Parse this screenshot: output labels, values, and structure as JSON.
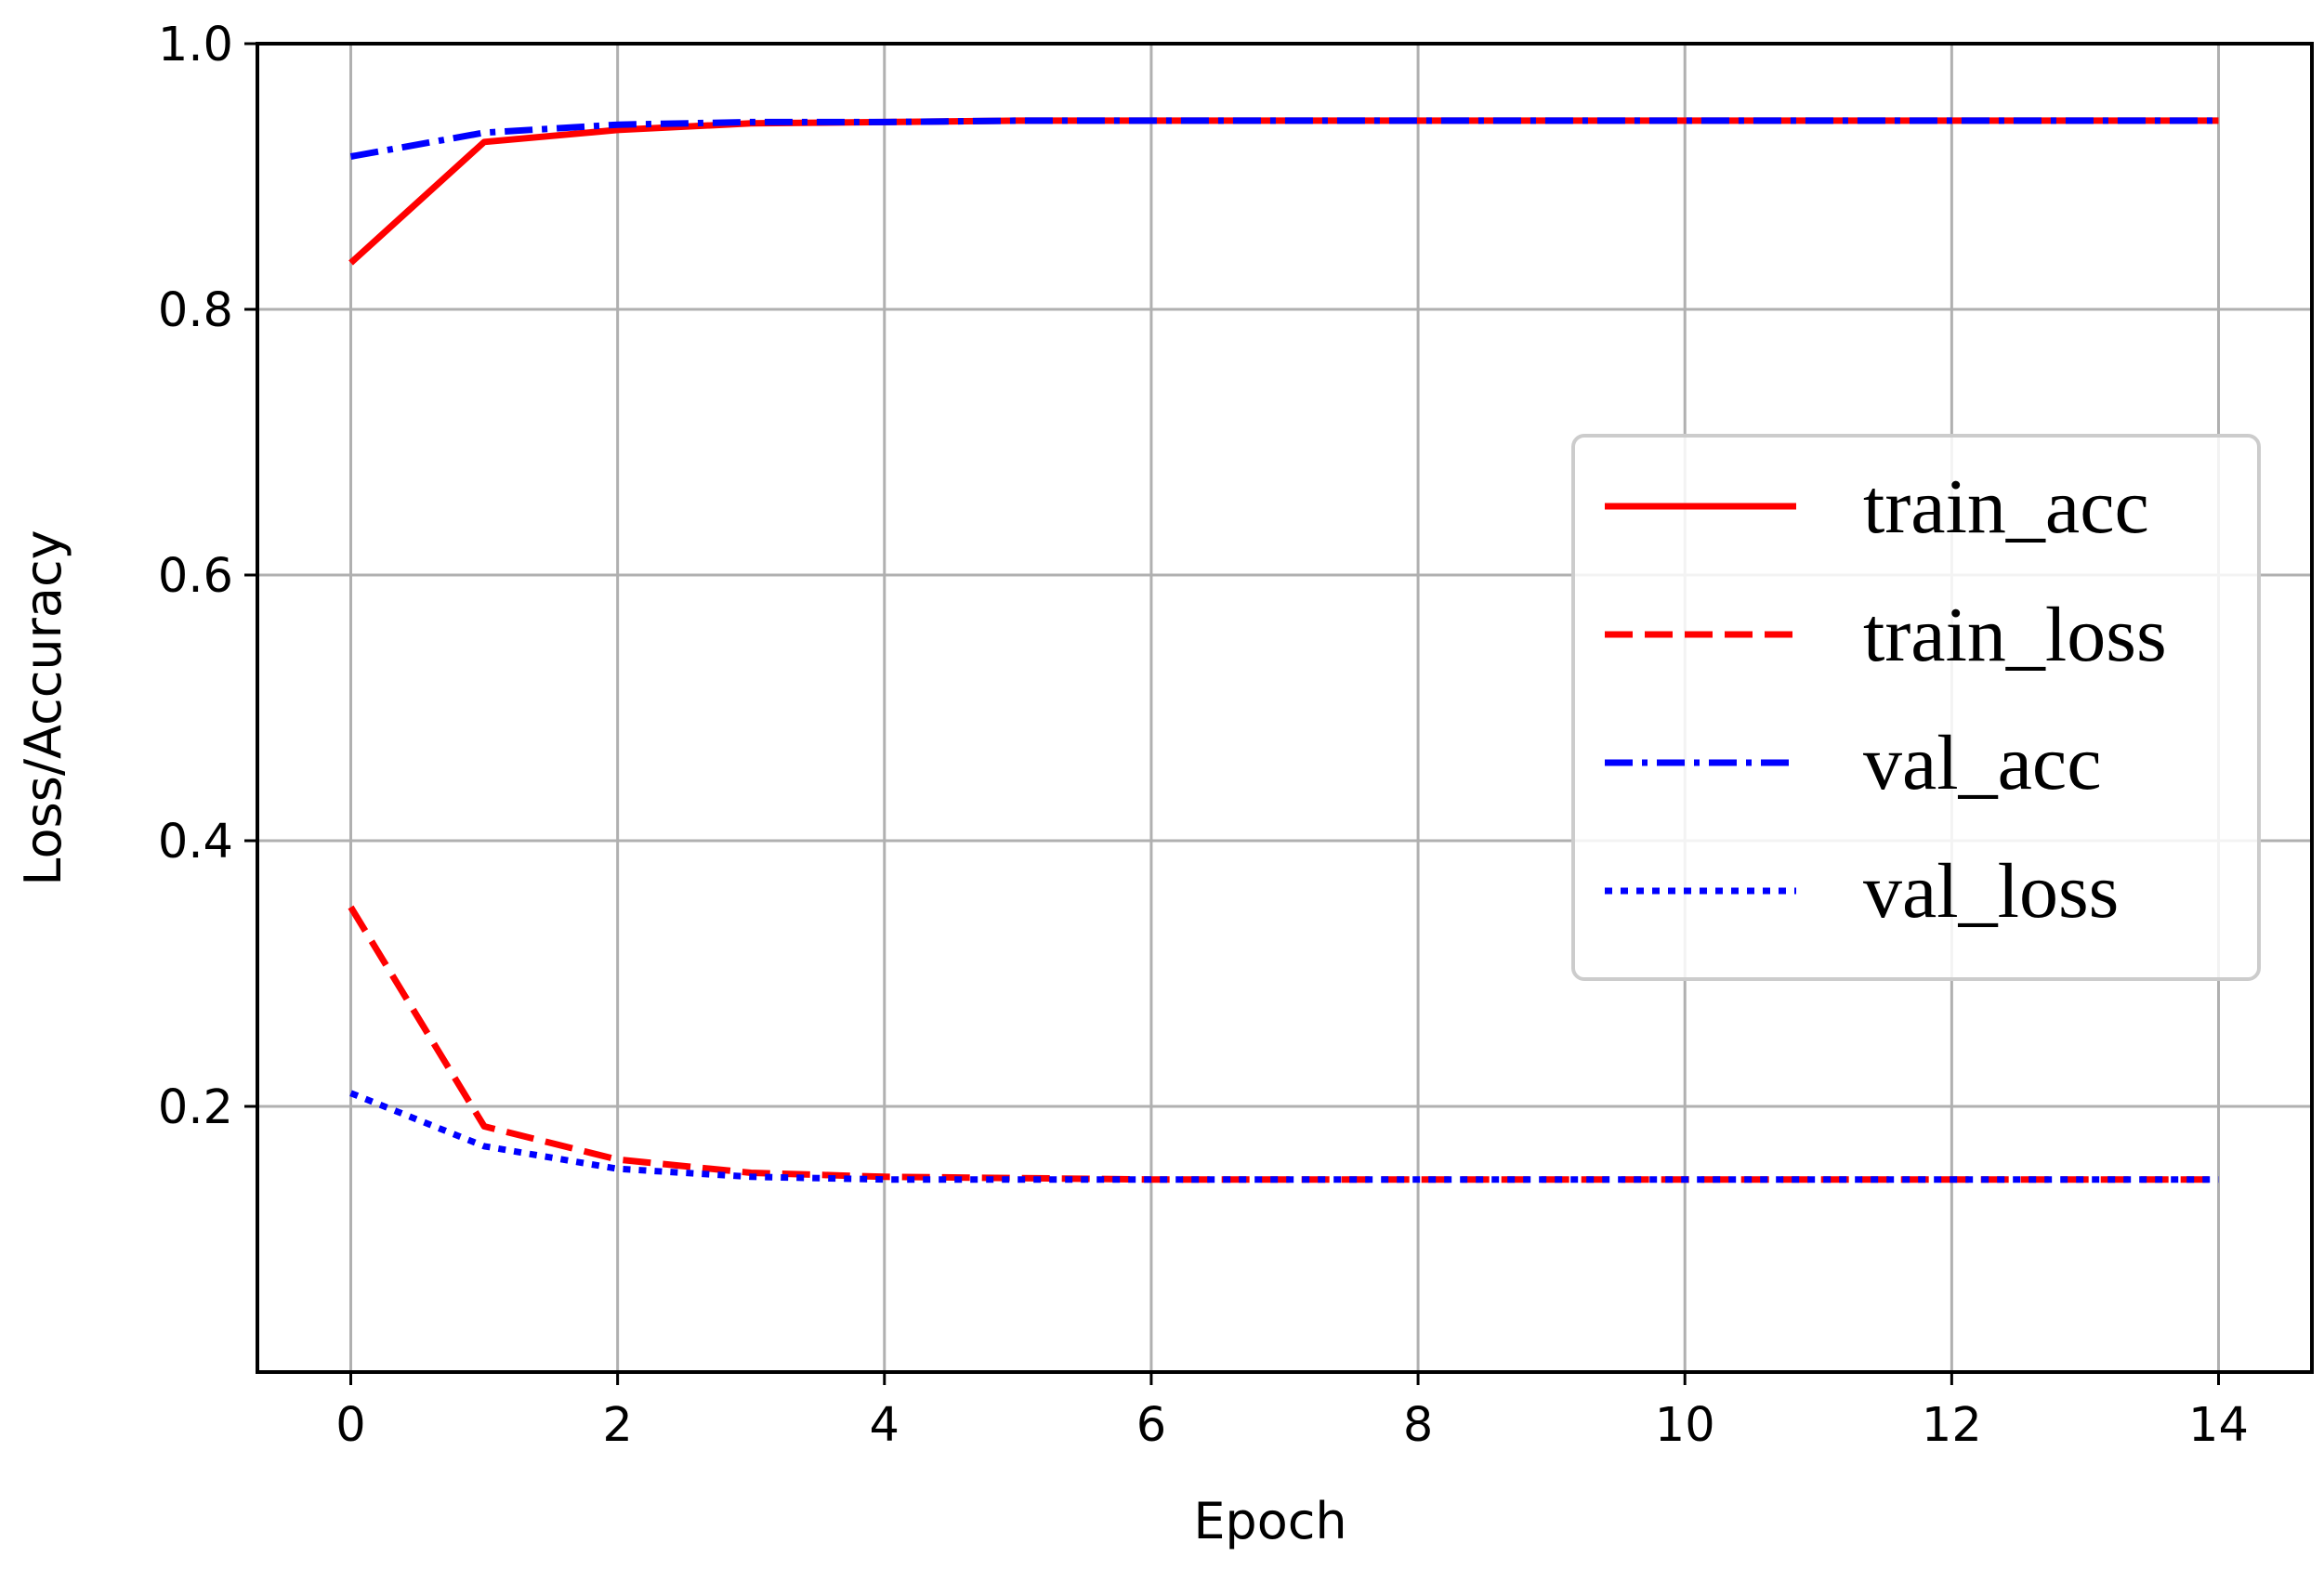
{
  "chart_data": {
    "type": "line",
    "title": "",
    "xlabel": "Epoch",
    "ylabel": "Loss/Accuracy",
    "xlim": [
      -0.7,
      14.7
    ],
    "ylim": [
      0.0,
      1.0
    ],
    "xticks": [
      0,
      2,
      4,
      6,
      8,
      10,
      12,
      14
    ],
    "xtick_labels": [
      "0",
      "2",
      "4",
      "6",
      "8",
      "10",
      "12",
      "14"
    ],
    "yticks": [
      0.2,
      0.4,
      0.6,
      0.8,
      1.0
    ],
    "ytick_labels": [
      "0.2",
      "0.4",
      "0.6",
      "0.8",
      "1.0"
    ],
    "grid": true,
    "legend_position": "center-right",
    "x": [
      0,
      1,
      2,
      3,
      4,
      5,
      6,
      7,
      8,
      9,
      10,
      11,
      12,
      13,
      14
    ],
    "series": [
      {
        "name": "train_acc",
        "color": "#ff0000",
        "style": "solid",
        "values": [
          0.835,
          0.926,
          0.935,
          0.94,
          0.941,
          0.942,
          0.942,
          0.942,
          0.942,
          0.942,
          0.942,
          0.942,
          0.942,
          0.942,
          0.942
        ]
      },
      {
        "name": "train_loss",
        "color": "#ff0000",
        "style": "dashed",
        "values": [
          0.35,
          0.185,
          0.16,
          0.15,
          0.147,
          0.146,
          0.145,
          0.145,
          0.145,
          0.145,
          0.145,
          0.145,
          0.145,
          0.145,
          0.145
        ]
      },
      {
        "name": "val_acc",
        "color": "#0000ff",
        "style": "dashdot",
        "values": [
          0.915,
          0.933,
          0.939,
          0.941,
          0.941,
          0.942,
          0.942,
          0.942,
          0.942,
          0.942,
          0.942,
          0.942,
          0.942,
          0.942,
          0.942
        ]
      },
      {
        "name": "val_loss",
        "color": "#0000ff",
        "style": "dotted",
        "values": [
          0.21,
          0.17,
          0.153,
          0.147,
          0.145,
          0.145,
          0.145,
          0.145,
          0.145,
          0.145,
          0.145,
          0.145,
          0.145,
          0.145,
          0.145
        ]
      }
    ]
  }
}
